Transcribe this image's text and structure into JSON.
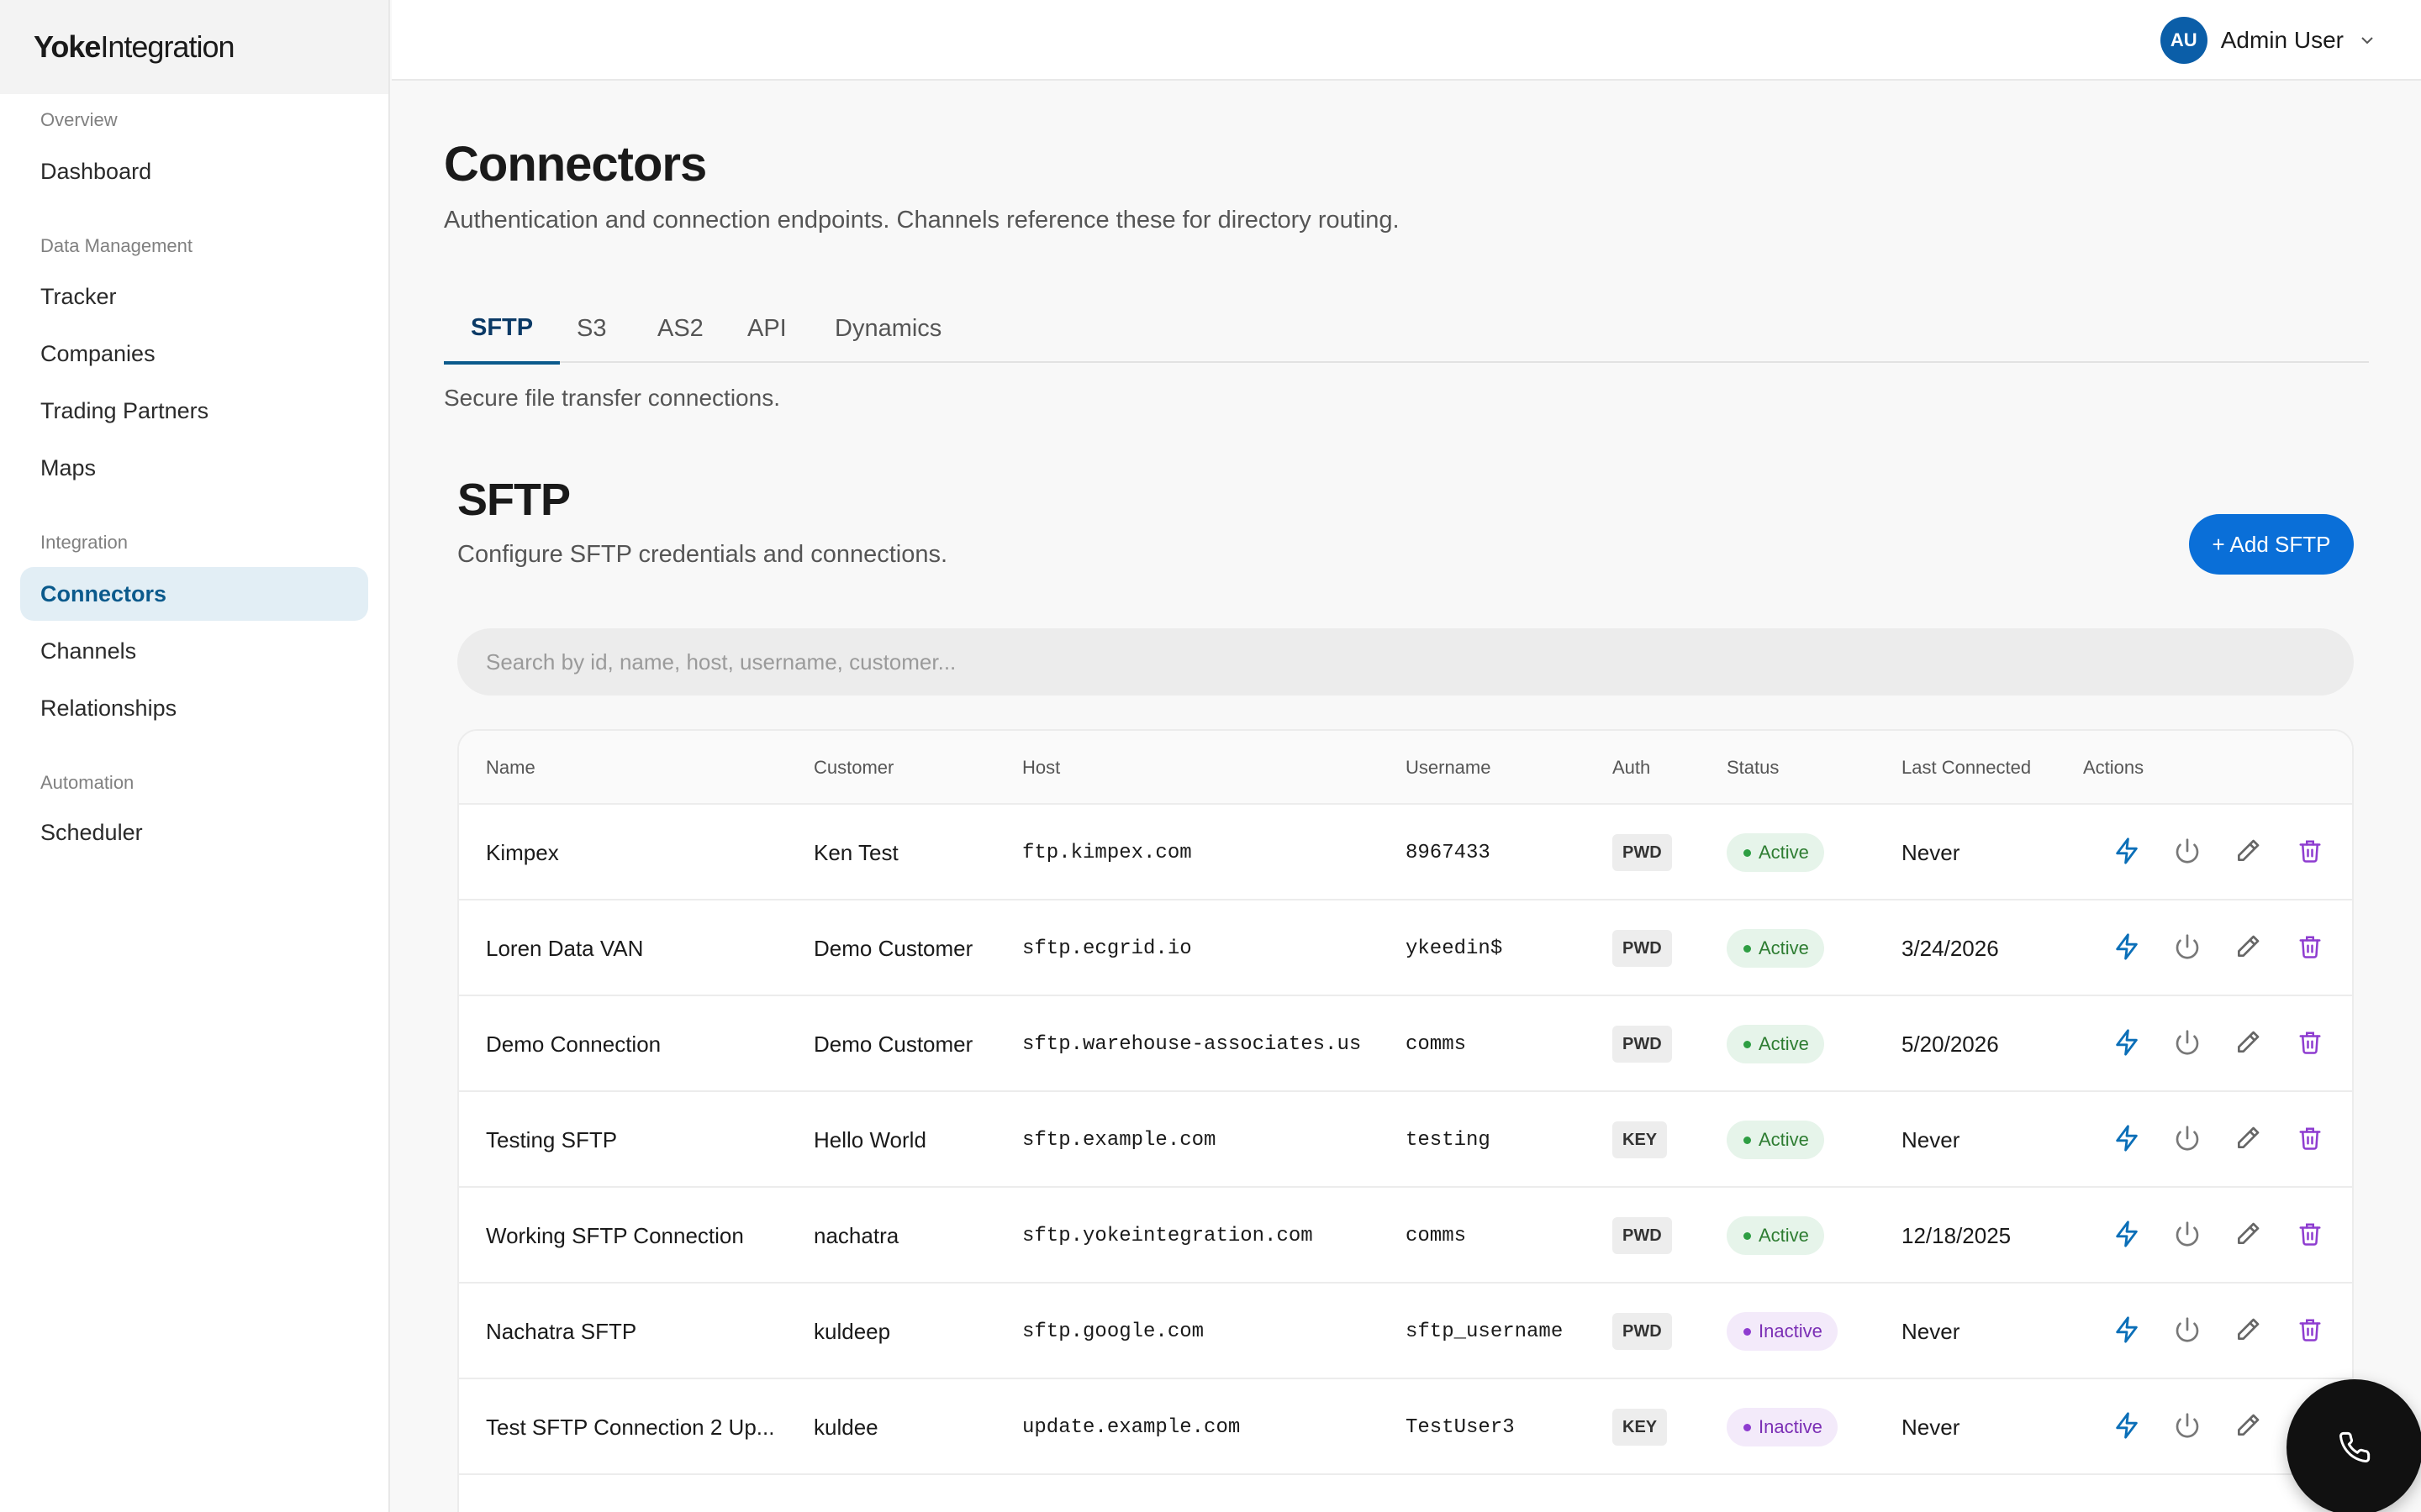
{
  "brand": {
    "bold": "Yoke",
    "light": "Integration"
  },
  "sidebar": {
    "sections": [
      {
        "label": "Overview",
        "items": [
          {
            "label": "Dashboard"
          }
        ]
      },
      {
        "label": "Data Management",
        "items": [
          {
            "label": "Tracker"
          },
          {
            "label": "Companies"
          },
          {
            "label": "Trading Partners"
          },
          {
            "label": "Maps"
          }
        ]
      },
      {
        "label": "Integration",
        "items": [
          {
            "label": "Connectors"
          },
          {
            "label": "Channels"
          },
          {
            "label": "Relationships"
          }
        ]
      },
      {
        "label": "Automation",
        "items": [
          {
            "label": "Scheduler"
          }
        ]
      }
    ],
    "active_item": "Connectors"
  },
  "user": {
    "initials": "AU",
    "name": "Admin User"
  },
  "page": {
    "title": "Connectors",
    "subtitle": "Authentication and connection endpoints. Channels reference these for directory routing."
  },
  "tabs": [
    {
      "label": "SFTP"
    },
    {
      "label": "S3"
    },
    {
      "label": "AS2"
    },
    {
      "label": "API"
    },
    {
      "label": "Dynamics"
    }
  ],
  "active_tab": "SFTP",
  "tab_description": "Secure file transfer connections.",
  "section": {
    "title": "SFTP",
    "subtitle": "Configure SFTP credentials and connections.",
    "add_label": "+ Add SFTP"
  },
  "search": {
    "placeholder": "Search by id, name, host, username, customer..."
  },
  "table": {
    "headers": {
      "name": "Name",
      "customer": "Customer",
      "host": "Host",
      "username": "Username",
      "auth": "Auth",
      "status": "Status",
      "last_connected": "Last Connected",
      "actions": "Actions"
    },
    "rows": [
      {
        "name": "Kimpex",
        "customer": "Ken Test",
        "host": "ftp.kimpex.com",
        "username": "8967433",
        "auth": "PWD",
        "status": "Active",
        "last_connected": "Never"
      },
      {
        "name": "Loren Data VAN",
        "customer": "Demo Customer",
        "host": "sftp.ecgrid.io",
        "username": "ykeedin$",
        "auth": "PWD",
        "status": "Active",
        "last_connected": "3/24/2026"
      },
      {
        "name": "Demo Connection",
        "customer": "Demo Customer",
        "host": "sftp.warehouse-associates.us",
        "username": "comms",
        "auth": "PWD",
        "status": "Active",
        "last_connected": "5/20/2026"
      },
      {
        "name": "Testing SFTP",
        "customer": "Hello World",
        "host": "sftp.example.com",
        "username": "testing",
        "auth": "KEY",
        "status": "Active",
        "last_connected": "Never"
      },
      {
        "name": "Working SFTP Connection",
        "customer": "nachatra",
        "host": "sftp.yokeintegration.com",
        "username": "comms",
        "auth": "PWD",
        "status": "Active",
        "last_connected": "12/18/2025"
      },
      {
        "name": "Nachatra SFTP",
        "customer": "kuldeep",
        "host": "sftp.google.com",
        "username": "sftp_username",
        "auth": "PWD",
        "status": "Inactive",
        "last_connected": "Never"
      },
      {
        "name": "Test SFTP Connection 2 Up...",
        "customer": "kuldee",
        "host": "update.example.com",
        "username": "TestUser3",
        "auth": "KEY",
        "status": "Inactive",
        "last_connected": "Never"
      }
    ]
  },
  "icons": {
    "test": "bolt-icon",
    "toggle": "power-icon",
    "edit": "pencil-icon",
    "delete": "trash-icon",
    "fab": "phone-icon",
    "user_menu": "chevron-down-icon"
  },
  "colors": {
    "accent": "#0a6fd8",
    "active_nav_bg": "#e2eef5",
    "active_nav_text": "#0b5a8c",
    "status_active": "#2e7d32",
    "status_inactive": "#7b2fb5",
    "delete": "#8e3cd0"
  }
}
